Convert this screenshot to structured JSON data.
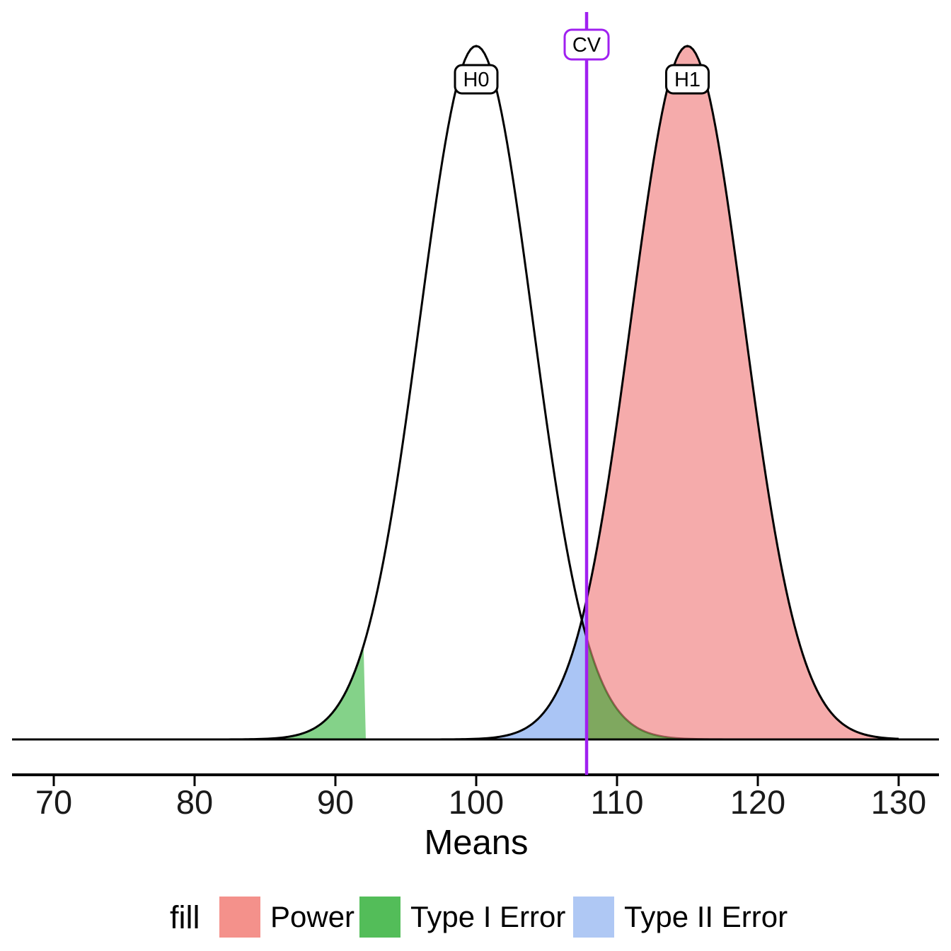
{
  "chart_data": {
    "type": "area",
    "title": "",
    "xlabel": "Means",
    "ylabel": "",
    "x_ticks": [
      70,
      80,
      90,
      100,
      110,
      120,
      130
    ],
    "xlim": [
      70,
      130
    ],
    "grid": "off",
    "curves": [
      {
        "label": "H0",
        "mean": 100,
        "sd": 4,
        "peak_height": 1
      },
      {
        "label": "H1",
        "mean": 115,
        "sd": 4,
        "peak_height": 1
      }
    ],
    "critical_value": {
      "label": "CV",
      "upper": 107.84,
      "lower": 92.16
    },
    "regions": [
      {
        "name": "Power",
        "curve": "H1",
        "extent": "right of upper CV"
      },
      {
        "name": "Type I Error",
        "curve": "H0",
        "extent": "left of lower CV and right of upper CV"
      },
      {
        "name": "Type II Error",
        "curve": "H1",
        "extent": "left of upper CV"
      }
    ],
    "legend": {
      "title": "fill",
      "position": "bottom",
      "entries": [
        {
          "label": "Power",
          "color": "#F4918B"
        },
        {
          "label": "Type I Error",
          "color": "#53BD59"
        },
        {
          "label": "Type II Error",
          "color": "#AFC8F4"
        }
      ]
    },
    "colors": {
      "power_fill": "rgba(240,128,128,0.66)",
      "type1_fill": "rgba(10,165,20,0.50)",
      "type2_fill": "rgba(100,149,237,0.55)",
      "curve_stroke": "#000000",
      "axis": "#000000",
      "cv_line": "#A020F0",
      "label_box_fill": "#ffffff"
    }
  }
}
